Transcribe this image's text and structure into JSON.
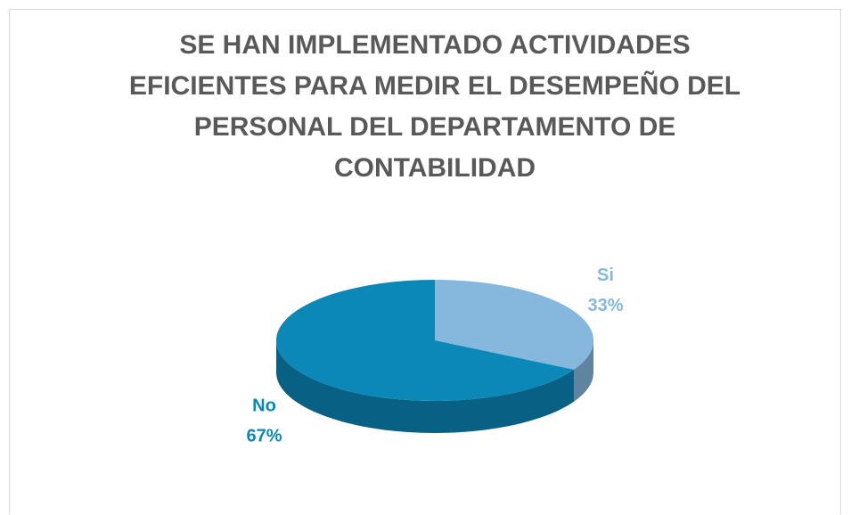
{
  "chart_data": {
    "type": "pie",
    "title": "SE HAN IMPLEMENTADO ACTIVIDADES EFICIENTES PARA MEDIR EL DESEMPEÑO DEL PERSONAL DEL DEPARTAMENTO DE CONTABILIDAD",
    "categories": [
      "Si",
      "No"
    ],
    "values": [
      33,
      67
    ],
    "value_labels": [
      "33%",
      "67%"
    ],
    "colors": [
      "#86b8de",
      "#0b87b8"
    ]
  }
}
